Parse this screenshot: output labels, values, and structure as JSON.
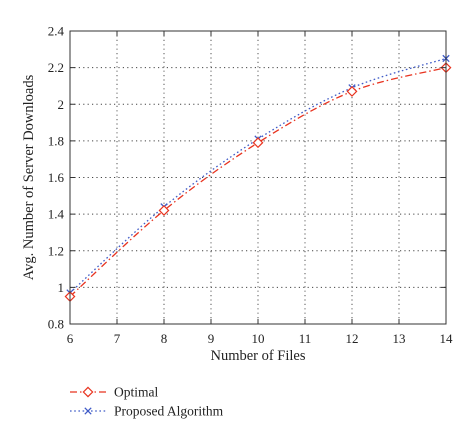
{
  "chart_data": {
    "type": "line",
    "xlabel": "Number of Files",
    "ylabel": "Avg. Number of Server Downloads",
    "xlim": [
      6,
      14
    ],
    "ylim": [
      0.8,
      2.4
    ],
    "xticks": [
      "6",
      "7",
      "8",
      "9",
      "10",
      "11",
      "12",
      "13",
      "14"
    ],
    "yticks": [
      "0.8",
      "1",
      "1.2",
      "1.4",
      "1.6",
      "1.8",
      "2",
      "2.2",
      "2.4"
    ],
    "grid": true,
    "legend_position": "bottom-left, below plot",
    "series": [
      {
        "name": "Optimal",
        "color": "#e8331f",
        "line_style": "dash-dot",
        "marker": "diamond",
        "x": [
          6,
          8,
          10,
          12,
          14
        ],
        "y": [
          0.95,
          1.42,
          1.79,
          2.07,
          2.2
        ]
      },
      {
        "name": "Proposed Algorithm",
        "color": "#3f5bc7",
        "line_style": "dotted",
        "marker": "x",
        "x": [
          6,
          8,
          10,
          12,
          14
        ],
        "y": [
          0.97,
          1.44,
          1.81,
          2.09,
          2.25
        ]
      }
    ]
  }
}
